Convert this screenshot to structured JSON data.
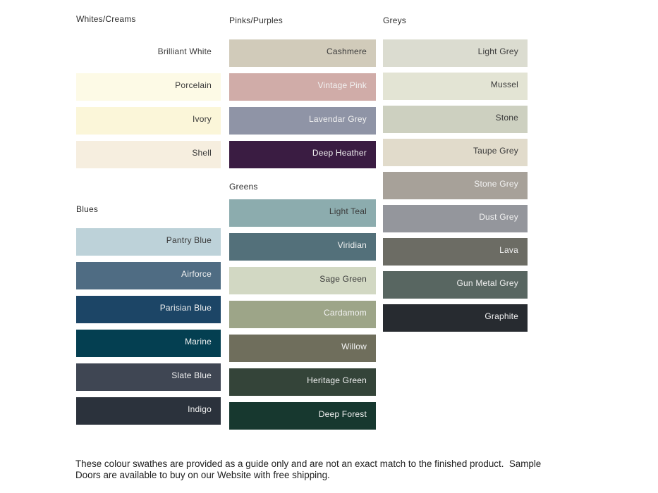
{
  "palette": {
    "label_dark": "#3b3b3b",
    "label_light": "#f2f2f2",
    "header_text": "#2d2d2d",
    "footer_text": "#1e1e1e",
    "page_background": "#ffffff"
  },
  "columns": [
    {
      "sections": [
        {
          "title": "Whites/Creams",
          "css": "sec-whites-creams",
          "swatches": [
            {
              "name": "Brilliant White",
              "bg": "#ffffff",
              "text": "dark"
            },
            {
              "name": "Porcelain",
              "bg": "#fdfae6",
              "text": "dark"
            },
            {
              "name": "Ivory",
              "bg": "#fbf6d9",
              "text": "dark"
            },
            {
              "name": "Shell",
              "bg": "#f6eedf",
              "text": "dark"
            }
          ]
        },
        {
          "title": "Blues",
          "css": "sec-blues",
          "swatches": [
            {
              "name": "Pantry Blue",
              "bg": "#bdd2d9",
              "text": "dark"
            },
            {
              "name": "Airforce",
              "bg": "#4f6c83",
              "text": "light"
            },
            {
              "name": "Parisian Blue",
              "bg": "#1c4566",
              "text": "light"
            },
            {
              "name": "Marine",
              "bg": "#043f51",
              "text": "light"
            },
            {
              "name": "Slate Blue",
              "bg": "#3f4653",
              "text": "light"
            },
            {
              "name": "Indigo",
              "bg": "#2b323c",
              "text": "light"
            }
          ]
        }
      ]
    },
    {
      "sections": [
        {
          "title": "Pinks/Purples",
          "css": "sec-pinks-purples",
          "swatches": [
            {
              "name": "Cashmere",
              "bg": "#d1cbba",
              "text": "dark"
            },
            {
              "name": "Vintage Pink",
              "bg": "#d0aca8",
              "text": "light"
            },
            {
              "name": "Lavendar Grey",
              "bg": "#8f94a6",
              "text": "light"
            },
            {
              "name": "Deep Heather",
              "bg": "#3a1c42",
              "text": "light"
            }
          ]
        },
        {
          "title": "Greens",
          "css": "sec-greens",
          "swatches": [
            {
              "name": "Light Teal",
              "bg": "#8cacae",
              "text": "dark"
            },
            {
              "name": "Viridian",
              "bg": "#53707a",
              "text": "light"
            },
            {
              "name": "Sage Green",
              "bg": "#d2d8c3",
              "text": "dark"
            },
            {
              "name": "Cardamom",
              "bg": "#9da588",
              "text": "light"
            },
            {
              "name": "Willow",
              "bg": "#6f6e5c",
              "text": "light"
            },
            {
              "name": "Heritage Green",
              "bg": "#344439",
              "text": "light"
            },
            {
              "name": "Deep Forest",
              "bg": "#17382f",
              "text": "light"
            }
          ]
        }
      ]
    },
    {
      "sections": [
        {
          "title": "Greys",
          "css": "sec-greys",
          "swatches": [
            {
              "name": "Light Grey",
              "bg": "#dbdcd0",
              "text": "dark"
            },
            {
              "name": "Mussel",
              "bg": "#e3e4d4",
              "text": "dark"
            },
            {
              "name": "Stone",
              "bg": "#cdd0c0",
              "text": "dark"
            },
            {
              "name": "Taupe Grey",
              "bg": "#e1dbcb",
              "text": "dark"
            },
            {
              "name": "Stone Grey",
              "bg": "#a7a199",
              "text": "light"
            },
            {
              "name": "Dust Grey",
              "bg": "#94969c",
              "text": "light"
            },
            {
              "name": "Lava",
              "bg": "#6c6c64",
              "text": "light"
            },
            {
              "name": "Gun Metal Grey",
              "bg": "#586661",
              "text": "light"
            },
            {
              "name": "Graphite",
              "bg": "#272b30",
              "text": "light"
            }
          ]
        }
      ]
    }
  ],
  "footer": {
    "note": "These colour swathes are provided as a guide only and are not an exact match to the finished product.  Sample Doors are available to buy on our Website with free shipping."
  }
}
